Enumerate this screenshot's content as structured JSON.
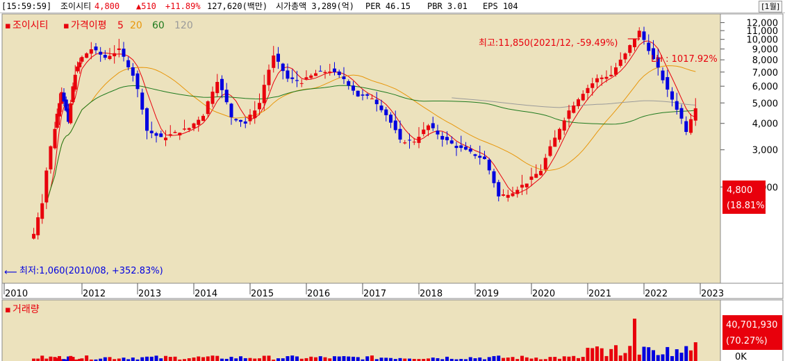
{
  "header": {
    "time": "[15:59:59]",
    "name": "조이시티",
    "price": "4,800",
    "change": "▲510",
    "change_pct": "+11.89%",
    "volume_info": "127,620(백만)",
    "market_cap": "시가총액 3,289(억)",
    "per": "PER 46.15",
    "pbr": "PBR 3.01",
    "eps": "EPS 104",
    "period_button": "[1월]"
  },
  "price_panel": {
    "title": "조이시티",
    "indicator_label": "가격이평",
    "ma_labels": [
      "5",
      "20",
      "60",
      "120"
    ],
    "max_annotation": "최고:11,850(2021/12, -59.49%)",
    "min_annotation": "최저:1,060(2010/08, +352.83%)",
    "lh_annotation": "LH : 1017.92%",
    "current_price": "4,800",
    "current_pct": "(18.81%)"
  },
  "volume_panel": {
    "title": "거래량",
    "current_value": "40,701,930",
    "current_pct": "(70.27%)",
    "axis_zero": "0K"
  },
  "colors": {
    "up": "#e8000c",
    "down": "#0000e0",
    "ma5": "#e8000c",
    "ma20": "#e8960a",
    "ma60": "#1e7a1e",
    "ma120": "#9a9a9a",
    "chart_bg": "#ece2bd",
    "axis_bg": "#ffffff"
  },
  "chart_data": {
    "type": "candlestick",
    "interval": "monthly",
    "x_ticks": [
      "2010",
      "2012",
      "2013",
      "2014",
      "2015",
      "2016",
      "2017",
      "2018",
      "2019",
      "2020",
      "2021",
      "2022",
      "2023"
    ],
    "y_ticks": [
      2000,
      3000,
      4000,
      5000,
      6000,
      7000,
      8000,
      9000,
      10000,
      11000,
      12000
    ],
    "y_tick_labels": [
      "2,000",
      "3,000",
      "4,000",
      "5,000",
      "6,000",
      "7,000",
      "8,000",
      "9,000",
      "10,000",
      "11,000",
      "12,000"
    ],
    "ylim": [
      700,
      13200
    ],
    "max": {
      "value": 11850,
      "date": "2021/12"
    },
    "min": {
      "value": 1060,
      "date": "2010/08"
    },
    "last_close": 4800,
    "ohlc_anchors": [
      [
        "2010-08",
        1200
      ],
      [
        "2010-10",
        1700
      ],
      [
        "2011-01",
        3800
      ],
      [
        "2011-04",
        5700
      ],
      [
        "2011-07",
        4000
      ],
      [
        "2011-10",
        6900
      ],
      [
        "2012-01",
        8200
      ],
      [
        "2012-03",
        9000
      ],
      [
        "2012-06",
        8200
      ],
      [
        "2012-09",
        8900
      ],
      [
        "2012-12",
        6800
      ],
      [
        "2013-03",
        3700
      ],
      [
        "2013-06",
        3400
      ],
      [
        "2013-09",
        3600
      ],
      [
        "2013-12",
        3800
      ],
      [
        "2014-03",
        4400
      ],
      [
        "2014-06",
        6400
      ],
      [
        "2014-09",
        4300
      ],
      [
        "2014-12",
        4000
      ],
      [
        "2015-03",
        5000
      ],
      [
        "2015-06",
        8300
      ],
      [
        "2015-09",
        6500
      ],
      [
        "2015-12",
        6300
      ],
      [
        "2016-03",
        6900
      ],
      [
        "2016-06",
        7100
      ],
      [
        "2016-09",
        6500
      ],
      [
        "2016-12",
        5400
      ],
      [
        "2017-03",
        5300
      ],
      [
        "2017-06",
        4400
      ],
      [
        "2017-09",
        3300
      ],
      [
        "2017-12",
        3300
      ],
      [
        "2018-03",
        3900
      ],
      [
        "2018-06",
        3400
      ],
      [
        "2018-09",
        3100
      ],
      [
        "2018-12",
        2900
      ],
      [
        "2019-03",
        2700
      ],
      [
        "2019-06",
        1800
      ],
      [
        "2019-09",
        1900
      ],
      [
        "2019-12",
        2100
      ],
      [
        "2020-03",
        2400
      ],
      [
        "2020-06",
        3400
      ],
      [
        "2020-09",
        4600
      ],
      [
        "2020-12",
        5600
      ],
      [
        "2021-03",
        6500
      ],
      [
        "2021-06",
        6800
      ],
      [
        "2021-09",
        8500
      ],
      [
        "2021-12",
        10900
      ],
      [
        "2022-03",
        8000
      ],
      [
        "2022-06",
        5700
      ],
      [
        "2022-09",
        4200
      ],
      [
        "2022-10",
        3700
      ],
      [
        "2022-12",
        4800
      ]
    ],
    "volume_spike_month": "2021-11"
  }
}
